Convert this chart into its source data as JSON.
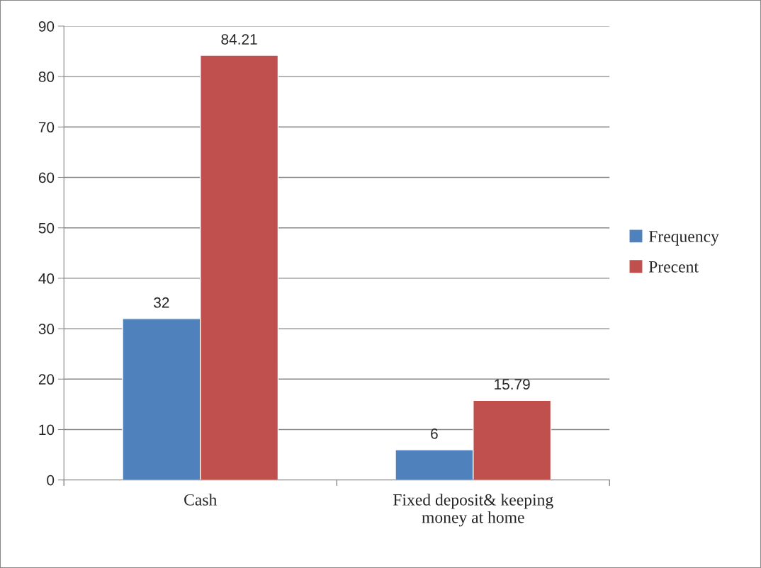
{
  "chart_data": {
    "type": "bar",
    "categories": [
      "Cash",
      "Fixed deposit& keeping money at home"
    ],
    "series": [
      {
        "name": "Frequency",
        "color": "#4f81bd",
        "values": [
          32,
          6
        ]
      },
      {
        "name": "Precent",
        "color": "#c0504d",
        "values": [
          84.21,
          15.79
        ]
      }
    ],
    "ylim": [
      0,
      90
    ],
    "yticks": [
      0,
      10,
      20,
      30,
      40,
      50,
      60,
      70,
      80,
      90
    ],
    "grid": "y",
    "legend": "right",
    "data_labels": true
  }
}
